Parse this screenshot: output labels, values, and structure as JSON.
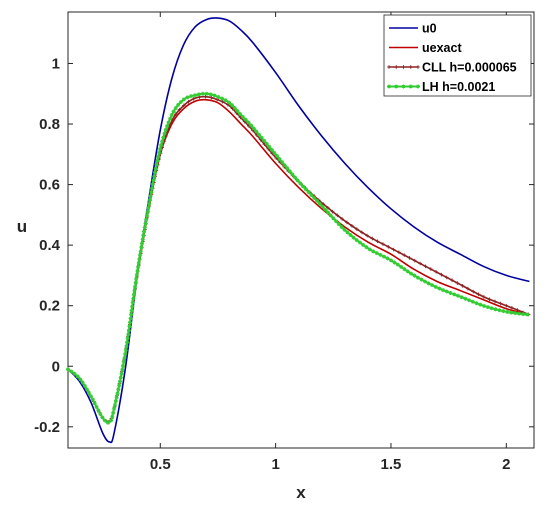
{
  "chart_data": {
    "type": "line",
    "title": "",
    "xlabel": "x",
    "ylabel": "u",
    "xlim": [
      0.1,
      2.12
    ],
    "ylim": [
      -0.27,
      1.17
    ],
    "x_ticks": [
      "0.5",
      "1",
      "1.5",
      "2"
    ],
    "y_ticks": [
      "-0.2",
      "0",
      "0.2",
      "0.4",
      "0.6",
      "0.8",
      "1"
    ],
    "grid": false,
    "legend_position": "top-right",
    "x": [
      0.1,
      0.15,
      0.2,
      0.25,
      0.28,
      0.3,
      0.35,
      0.4,
      0.45,
      0.5,
      0.55,
      0.6,
      0.65,
      0.7,
      0.75,
      0.8,
      0.85,
      0.9,
      1.0,
      1.1,
      1.2,
      1.3,
      1.4,
      1.5,
      1.6,
      1.7,
      1.8,
      1.9,
      2.0,
      2.1
    ],
    "series": [
      {
        "name": "u0",
        "color": "#0000a0",
        "marker": "none",
        "values": [
          -0.01,
          -0.05,
          -0.12,
          -0.22,
          -0.25,
          -0.22,
          0.0,
          0.3,
          0.55,
          0.78,
          0.95,
          1.06,
          1.12,
          1.145,
          1.15,
          1.14,
          1.11,
          1.07,
          0.97,
          0.86,
          0.76,
          0.67,
          0.59,
          0.52,
          0.46,
          0.41,
          0.37,
          0.33,
          0.3,
          0.28
        ]
      },
      {
        "name": "uexact",
        "color": "#c00000",
        "marker": "none",
        "values": [
          -0.01,
          -0.04,
          -0.1,
          -0.17,
          -0.18,
          -0.14,
          0.05,
          0.3,
          0.52,
          0.7,
          0.8,
          0.85,
          0.875,
          0.88,
          0.87,
          0.84,
          0.8,
          0.76,
          0.67,
          0.59,
          0.52,
          0.46,
          0.41,
          0.37,
          0.32,
          0.28,
          0.25,
          0.22,
          0.19,
          0.17
        ]
      },
      {
        "name": "CLL h=0.000065",
        "color": "#8b2323",
        "marker": "plus",
        "values": [
          -0.01,
          -0.04,
          -0.1,
          -0.17,
          -0.18,
          -0.14,
          0.05,
          0.3,
          0.52,
          0.7,
          0.81,
          0.86,
          0.885,
          0.89,
          0.88,
          0.86,
          0.82,
          0.78,
          0.69,
          0.61,
          0.54,
          0.48,
          0.43,
          0.39,
          0.35,
          0.31,
          0.27,
          0.23,
          0.2,
          0.17
        ]
      },
      {
        "name": "LH h=0.0021",
        "color": "#33cc33",
        "marker": "star",
        "values": [
          -0.01,
          -0.04,
          -0.1,
          -0.17,
          -0.185,
          -0.14,
          0.05,
          0.31,
          0.53,
          0.72,
          0.83,
          0.88,
          0.895,
          0.9,
          0.89,
          0.87,
          0.83,
          0.79,
          0.7,
          0.61,
          0.53,
          0.45,
          0.39,
          0.35,
          0.3,
          0.26,
          0.23,
          0.2,
          0.18,
          0.17
        ]
      }
    ]
  }
}
